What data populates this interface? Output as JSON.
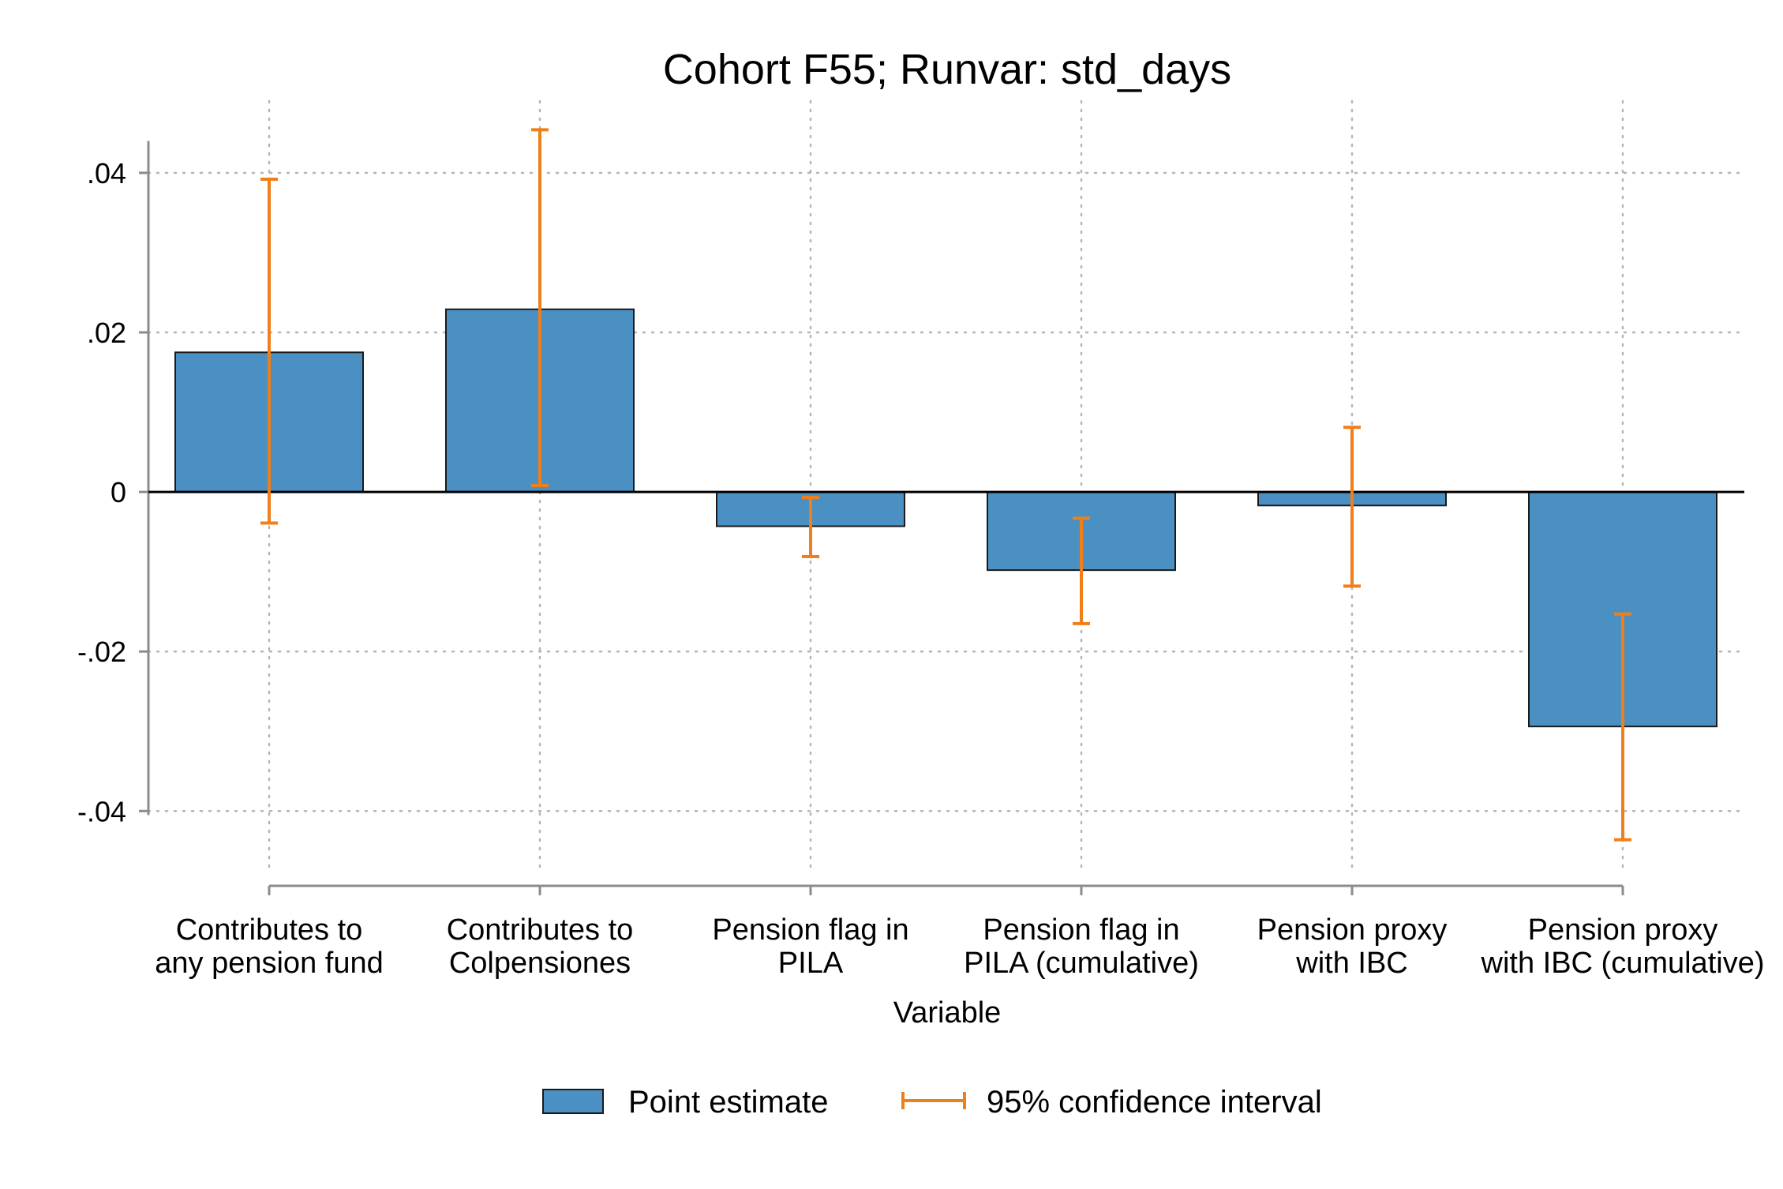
{
  "chart_data": {
    "type": "bar",
    "title": "Cohort F55; Runvar: std_days",
    "xlabel": "Variable",
    "ylabel": "",
    "ylim": [
      -0.047,
      0.049
    ],
    "yticks": [
      {
        "value": 0.04,
        "label": ".04"
      },
      {
        "value": 0.02,
        "label": ".02"
      },
      {
        "value": 0,
        "label": "0"
      },
      {
        "value": -0.02,
        "label": "-.02"
      },
      {
        "value": -0.04,
        "label": "-.04"
      }
    ],
    "categories": [
      [
        "Contributes to",
        "any pension fund"
      ],
      [
        "Contributes to",
        "Colpensiones"
      ],
      [
        "Pension flag in",
        "PILA"
      ],
      [
        "Pension flag in",
        "PILA (cumulative)"
      ],
      [
        "Pension proxy",
        "with IBC"
      ],
      [
        "Pension proxy",
        "with IBC (cumulative)"
      ]
    ],
    "series": [
      {
        "name": "Point estimate",
        "values": [
          0.0175,
          0.0229,
          -0.0043,
          -0.0098,
          -0.0017,
          -0.0294
        ]
      },
      {
        "name": "95% confidence interval",
        "lower": [
          -0.0039,
          0.0008,
          -0.0081,
          -0.0165,
          -0.0118,
          -0.0436
        ],
        "upper": [
          0.0392,
          0.0454,
          -0.0007,
          -0.0033,
          0.0081,
          -0.0153
        ]
      }
    ],
    "grid": true,
    "legend": "bottom",
    "colors": {
      "bar": "#4a90c2",
      "bar_edge": "#1a1a1a",
      "ci": "#f07f1a",
      "grid": "#b5b5b5",
      "axis": "#8c8c8c"
    }
  }
}
